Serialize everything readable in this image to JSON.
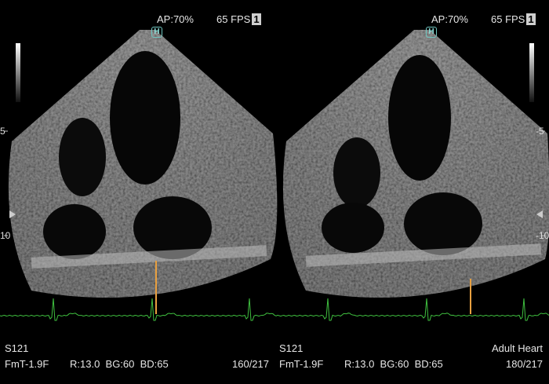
{
  "left_panel": {
    "ap": "AP:70%",
    "fps": "65 FPS",
    "fps_badge": "1",
    "harmonic_badge": "H",
    "probe": "S121",
    "preset_line": "FmT-1.9F",
    "params": "R:13.0  BG:60  BD:65",
    "frame": "160/217",
    "depth_labels": [
      "5",
      "10"
    ]
  },
  "right_panel": {
    "ap": "AP:70%",
    "fps": "65 FPS",
    "fps_badge": "1",
    "harmonic_badge": "H",
    "probe": "S121",
    "preset_line": "FmT-1.9F",
    "params": "R:13.0  BG:60  BD:65",
    "exam": "Adult Heart",
    "frame": "180/217",
    "depth_labels": [
      "-5",
      "-10"
    ]
  },
  "colors": {
    "ecg": "#3fbf3f",
    "cursor": "#e8a040",
    "badge": "#6fc6c0"
  }
}
